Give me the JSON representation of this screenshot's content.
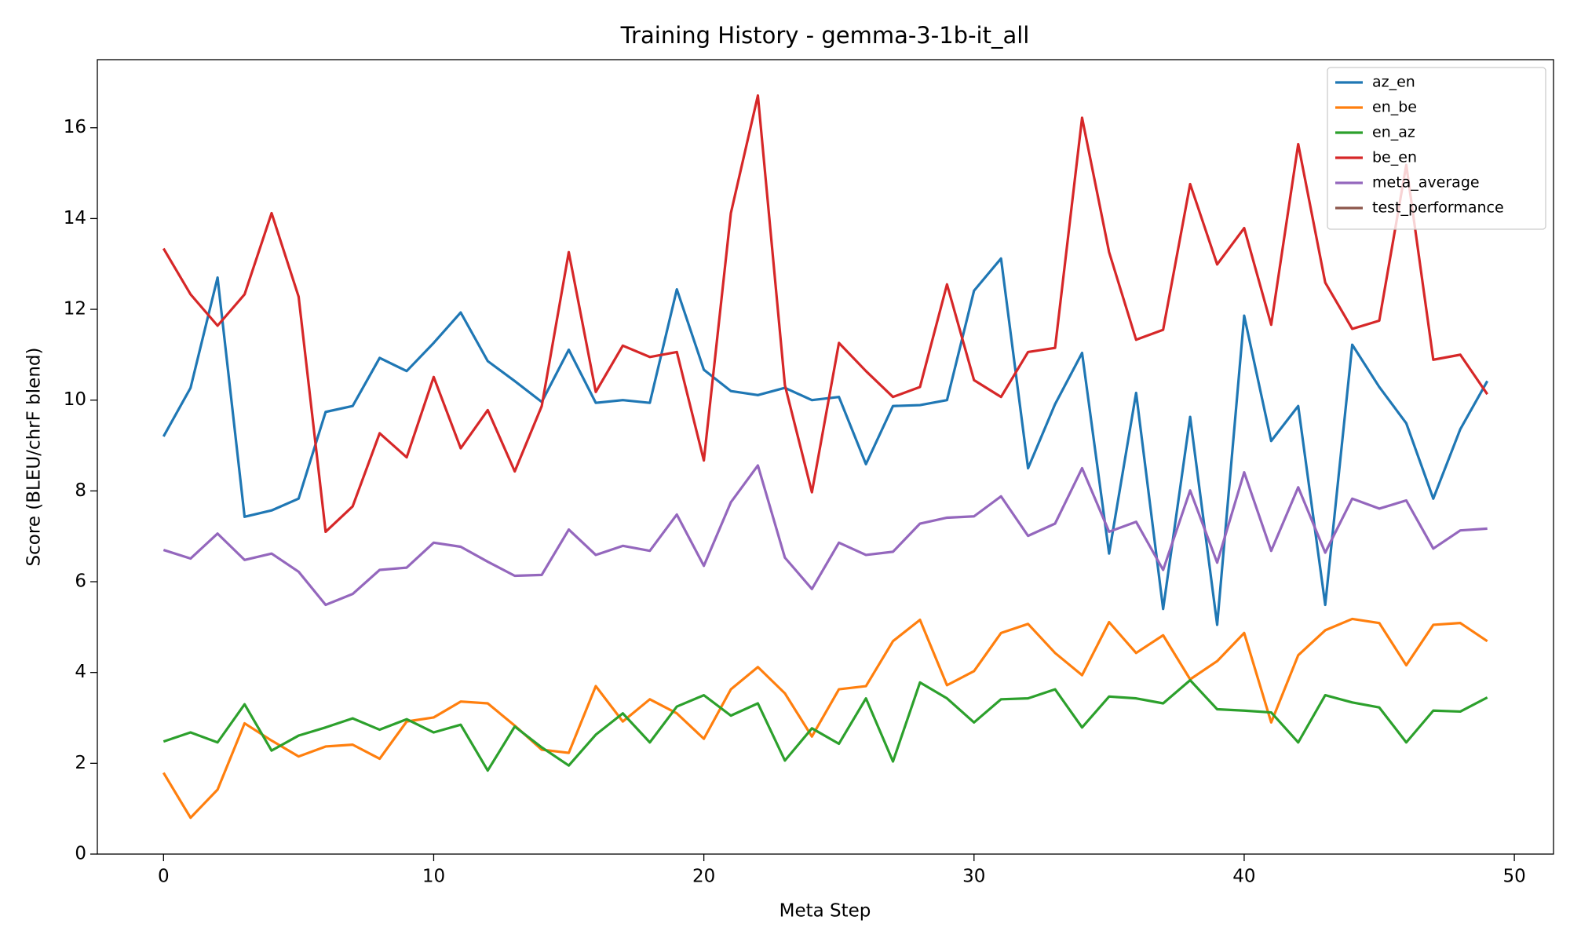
{
  "chart_data": {
    "type": "line",
    "title": "Training History - gemma-3-1b-it_all",
    "xlabel": "Meta Step",
    "ylabel": "Score (BLEU/chrF blend)",
    "x": [
      0,
      1,
      2,
      3,
      4,
      5,
      6,
      7,
      8,
      9,
      10,
      11,
      12,
      13,
      14,
      15,
      16,
      17,
      18,
      19,
      20,
      21,
      22,
      23,
      24,
      25,
      26,
      27,
      28,
      29,
      30,
      31,
      32,
      33,
      34,
      35,
      36,
      37,
      38,
      39,
      40,
      41,
      42,
      43,
      44,
      45,
      46,
      47,
      48,
      49
    ],
    "xlim": [
      -2.45,
      51.45
    ],
    "xticks": [
      0,
      10,
      20,
      30,
      40,
      50
    ],
    "ylim": [
      0,
      17.5
    ],
    "yticks": [
      0,
      2,
      4,
      6,
      8,
      10,
      12,
      14,
      16
    ],
    "legend": "upper right",
    "series": [
      {
        "name": "az_en",
        "color": "#1f77b4",
        "values": [
          9.2,
          10.27,
          12.7,
          7.43,
          7.57,
          7.83,
          9.74,
          9.87,
          10.93,
          10.64,
          11.26,
          11.93,
          10.86,
          10.42,
          9.96,
          11.11,
          9.94,
          10.0,
          9.94,
          12.44,
          10.67,
          10.2,
          10.11,
          10.27,
          10.0,
          10.07,
          8.59,
          9.87,
          9.89,
          10.0,
          12.41,
          13.12,
          8.5,
          9.91,
          11.04,
          6.62,
          10.16,
          5.4,
          9.63,
          5.05,
          11.86,
          9.1,
          9.87,
          5.49,
          11.22,
          10.29,
          9.49,
          7.83,
          9.36,
          10.42
        ]
      },
      {
        "name": "en_be",
        "color": "#ff7f0e",
        "values": [
          1.79,
          0.8,
          1.42,
          2.88,
          2.5,
          2.15,
          2.37,
          2.41,
          2.1,
          2.92,
          3.01,
          3.36,
          3.32,
          2.83,
          2.3,
          2.23,
          3.7,
          2.92,
          3.41,
          3.1,
          2.54,
          3.63,
          4.12,
          3.54,
          2.59,
          3.63,
          3.7,
          4.69,
          5.16,
          3.72,
          4.03,
          4.87,
          5.07,
          4.43,
          3.94,
          5.11,
          4.43,
          4.82,
          3.85,
          4.25,
          4.87,
          2.9,
          4.38,
          4.93,
          5.18,
          5.09,
          4.16,
          5.05,
          5.09,
          4.69
        ]
      },
      {
        "name": "en_az",
        "color": "#2ca02c",
        "values": [
          2.48,
          2.68,
          2.46,
          3.3,
          2.28,
          2.61,
          2.79,
          2.99,
          2.74,
          2.97,
          2.68,
          2.85,
          1.84,
          2.81,
          2.35,
          1.95,
          2.63,
          3.1,
          2.46,
          3.25,
          3.5,
          3.05,
          3.32,
          2.06,
          2.77,
          2.43,
          3.43,
          2.04,
          3.78,
          3.43,
          2.9,
          3.41,
          3.43,
          3.63,
          2.79,
          3.47,
          3.43,
          3.32,
          3.83,
          3.19,
          3.16,
          3.12,
          2.46,
          3.5,
          3.34,
          3.23,
          2.46,
          3.16,
          3.14,
          3.45
        ]
      },
      {
        "name": "be_en",
        "color": "#d62728",
        "values": [
          13.34,
          12.33,
          11.64,
          12.33,
          14.12,
          12.28,
          7.1,
          7.66,
          9.27,
          8.74,
          10.51,
          8.94,
          9.78,
          8.43,
          9.87,
          13.26,
          10.18,
          11.2,
          10.95,
          11.06,
          8.67,
          14.12,
          16.71,
          10.33,
          7.97,
          11.26,
          10.64,
          10.07,
          10.29,
          12.55,
          10.44,
          10.07,
          11.06,
          11.15,
          16.22,
          13.26,
          11.33,
          11.55,
          14.76,
          12.99,
          13.79,
          11.66,
          15.64,
          12.59,
          11.57,
          11.75,
          15.18,
          10.89,
          11.0,
          10.13
        ]
      },
      {
        "name": "meta_average",
        "color": "#9467bd",
        "values": [
          6.7,
          6.51,
          7.06,
          6.48,
          6.62,
          6.22,
          5.49,
          5.73,
          6.26,
          6.31,
          6.86,
          6.77,
          6.44,
          6.13,
          6.15,
          7.15,
          6.59,
          6.79,
          6.68,
          7.48,
          6.35,
          7.75,
          8.56,
          6.53,
          5.84,
          6.86,
          6.59,
          6.66,
          7.28,
          7.41,
          7.44,
          7.88,
          7.01,
          7.28,
          8.5,
          7.1,
          7.32,
          6.26,
          8.01,
          6.42,
          8.41,
          6.68,
          8.08,
          6.64,
          7.83,
          7.61,
          7.79,
          6.73,
          7.13,
          7.17
        ]
      },
      {
        "name": "test_performance",
        "color": "#8c564b",
        "values": [
          null,
          null,
          null,
          null,
          null,
          null,
          null,
          null,
          null,
          null,
          null,
          null,
          null,
          null,
          null,
          null,
          null,
          null,
          null,
          null,
          null,
          null,
          null,
          null,
          null,
          null,
          null,
          null,
          null,
          null,
          null,
          null,
          null,
          null,
          null,
          null,
          null,
          null,
          null,
          null,
          null,
          null,
          null,
          null,
          null,
          null,
          null,
          null,
          null,
          null
        ]
      }
    ]
  }
}
